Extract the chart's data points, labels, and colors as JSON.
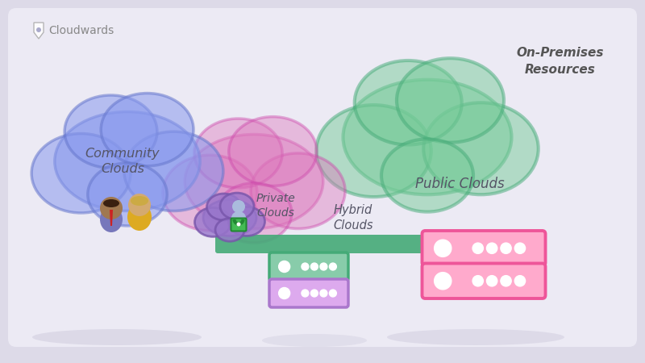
{
  "bg_color": "#dddae8",
  "bg_inner_color": "#eceaf4",
  "title": "On-Premises\nResources",
  "title_color": "#555555",
  "logo_text": "Cloudwards",
  "logo_color": "#888888",
  "community_cloud_color": "#8899ee",
  "community_cloud_edge": "#6677cc",
  "community_cloud_alpha": 0.6,
  "private_cloud_color": "#dd77bb",
  "private_cloud_edge": "#cc44aa",
  "private_cloud_alpha": 0.45,
  "public_cloud_color": "#77cc99",
  "public_cloud_edge": "#44aa77",
  "public_cloud_alpha": 0.55,
  "private_mini_cloud_color": "#9977cc",
  "private_mini_cloud_edge": "#7755aa",
  "hybrid_cloud_label": "Hybrid\nClouds",
  "community_cloud_label": "Community\nClouds",
  "private_cloud_label": "Private\nClouds",
  "public_cloud_label": "Public Clouds",
  "server_green_color": "#44aa77",
  "server_green_bg": "#88ccaa",
  "server_pink_color": "#ee5599",
  "server_pink_bg": "#ffaacc",
  "server_purple_color": "#aa77cc",
  "server_purple_bg": "#ddaaee",
  "server_dot_color": "#ffffff",
  "connector_color": "#44aa77",
  "shadow_color": "#b8b4cc",
  "text_color": "#555566"
}
